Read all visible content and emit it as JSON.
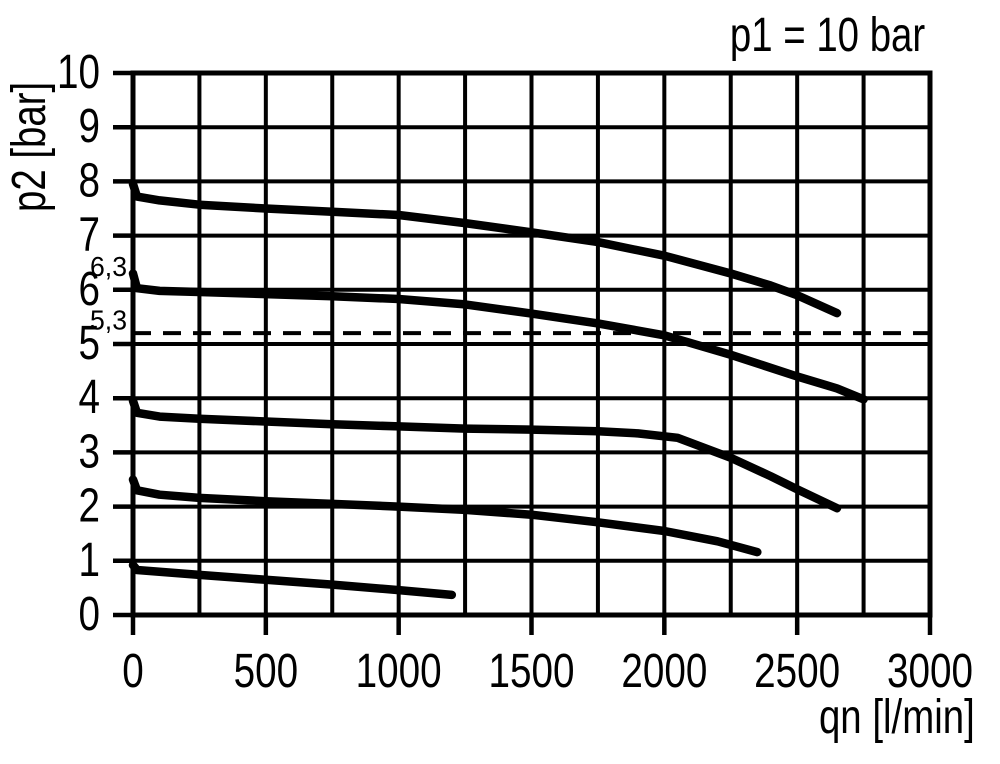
{
  "chart_data": {
    "type": "line",
    "title": "p1 = 10 bar",
    "xlabel": "qn [l/min]",
    "ylabel": "p2 [bar]",
    "xlim": [
      0,
      3000
    ],
    "ylim": [
      0,
      10
    ],
    "x_ticks": [
      0,
      500,
      1000,
      1500,
      2000,
      2500,
      3000
    ],
    "y_ticks": [
      0,
      1,
      2,
      3,
      4,
      5,
      6,
      7,
      8,
      9,
      10
    ],
    "x_grid_step": 250,
    "y_grid_step": 1,
    "grid": true,
    "legend": false,
    "line_color": "#000000",
    "background": "#ffffff",
    "axis_annotations": [
      {
        "text": "6,3",
        "y": 6.46
      },
      {
        "text": "5,3",
        "y": 5.47
      }
    ],
    "reference_line": {
      "y": 5.2,
      "style": "dashed",
      "x0": 0,
      "x1": 3000
    },
    "series": [
      {
        "id": "curve-1",
        "points": [
          [
            0,
            7.95
          ],
          [
            15,
            7.72
          ],
          [
            100,
            7.65
          ],
          [
            250,
            7.57
          ],
          [
            500,
            7.5
          ],
          [
            750,
            7.44
          ],
          [
            1000,
            7.38
          ],
          [
            1250,
            7.23
          ],
          [
            1500,
            7.06
          ],
          [
            1750,
            6.88
          ],
          [
            2000,
            6.63
          ],
          [
            2250,
            6.3
          ],
          [
            2400,
            6.08
          ],
          [
            2500,
            5.9
          ],
          [
            2650,
            5.57
          ]
        ]
      },
      {
        "id": "curve-2",
        "points": [
          [
            0,
            6.3
          ],
          [
            15,
            6.03
          ],
          [
            100,
            5.98
          ],
          [
            250,
            5.96
          ],
          [
            500,
            5.92
          ],
          [
            750,
            5.88
          ],
          [
            1000,
            5.83
          ],
          [
            1250,
            5.73
          ],
          [
            1500,
            5.56
          ],
          [
            1750,
            5.38
          ],
          [
            2000,
            5.16
          ],
          [
            2250,
            4.8
          ],
          [
            2500,
            4.4
          ],
          [
            2650,
            4.18
          ],
          [
            2750,
            3.98
          ]
        ]
      },
      {
        "id": "curve-3",
        "points": [
          [
            0,
            3.95
          ],
          [
            15,
            3.73
          ],
          [
            100,
            3.66
          ],
          [
            250,
            3.62
          ],
          [
            500,
            3.57
          ],
          [
            750,
            3.52
          ],
          [
            1000,
            3.48
          ],
          [
            1250,
            3.44
          ],
          [
            1500,
            3.42
          ],
          [
            1750,
            3.39
          ],
          [
            1900,
            3.35
          ],
          [
            2050,
            3.27
          ],
          [
            2250,
            2.9
          ],
          [
            2400,
            2.56
          ],
          [
            2500,
            2.32
          ],
          [
            2650,
            1.97
          ]
        ]
      },
      {
        "id": "curve-4",
        "points": [
          [
            0,
            2.5
          ],
          [
            15,
            2.3
          ],
          [
            100,
            2.22
          ],
          [
            250,
            2.16
          ],
          [
            500,
            2.1
          ],
          [
            750,
            2.05
          ],
          [
            1000,
            2.0
          ],
          [
            1250,
            1.94
          ],
          [
            1500,
            1.85
          ],
          [
            1750,
            1.71
          ],
          [
            2000,
            1.55
          ],
          [
            2200,
            1.36
          ],
          [
            2350,
            1.16
          ]
        ]
      },
      {
        "id": "curve-5",
        "points": [
          [
            0,
            0.92
          ],
          [
            15,
            0.83
          ],
          [
            250,
            0.74
          ],
          [
            500,
            0.65
          ],
          [
            750,
            0.56
          ],
          [
            1000,
            0.46
          ],
          [
            1200,
            0.37
          ]
        ]
      }
    ]
  }
}
